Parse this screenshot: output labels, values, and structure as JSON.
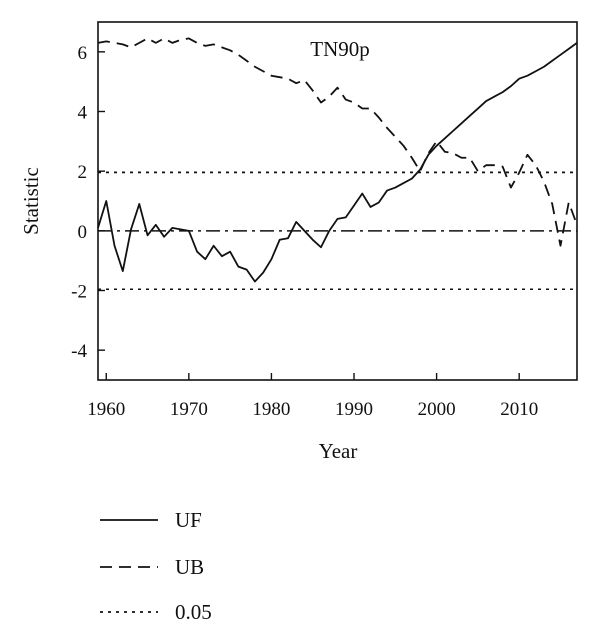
{
  "chart_data": {
    "type": "line",
    "title": "TN90p",
    "xlabel": "Year",
    "ylabel": "Statistic",
    "xlim": [
      1959,
      2017
    ],
    "ylim": [
      -5,
      7
    ],
    "x_ticks": [
      1960,
      1970,
      1980,
      1990,
      2000,
      2010
    ],
    "y_ticks": [
      -4,
      -2,
      0,
      2,
      4,
      6
    ],
    "grid": false,
    "legend_position": "below",
    "series": [
      {
        "name": "UF",
        "style": "solid",
        "color": "#111111",
        "x": [
          1959,
          1960,
          1961,
          1962,
          1963,
          1964,
          1965,
          1966,
          1967,
          1968,
          1969,
          1970,
          1971,
          1972,
          1973,
          1974,
          1975,
          1976,
          1977,
          1978,
          1979,
          1980,
          1981,
          1982,
          1983,
          1984,
          1985,
          1986,
          1987,
          1988,
          1989,
          1990,
          1991,
          1992,
          1993,
          1994,
          1995,
          1996,
          1997,
          1998,
          1999,
          2000,
          2001,
          2002,
          2003,
          2004,
          2005,
          2006,
          2007,
          2008,
          2009,
          2010,
          2011,
          2012,
          2013,
          2014,
          2015,
          2016,
          2017
        ],
        "y": [
          0.1,
          1.0,
          -0.5,
          -1.35,
          0.05,
          0.9,
          -0.15,
          0.2,
          -0.2,
          0.1,
          0.05,
          0.0,
          -0.7,
          -0.95,
          -0.5,
          -0.85,
          -0.7,
          -1.2,
          -1.3,
          -1.7,
          -1.4,
          -0.95,
          -0.3,
          -0.25,
          0.3,
          0.0,
          -0.3,
          -0.55,
          0.0,
          0.4,
          0.45,
          0.85,
          1.25,
          0.8,
          0.95,
          1.35,
          1.45,
          1.6,
          1.75,
          2.05,
          2.55,
          2.85,
          3.1,
          3.35,
          3.6,
          3.85,
          4.1,
          4.35,
          4.5,
          4.65,
          4.85,
          5.1,
          5.2,
          5.35,
          5.5,
          5.7,
          5.9,
          6.1,
          6.3
        ]
      },
      {
        "name": "UB",
        "style": "dashed",
        "color": "#111111",
        "x": [
          1959,
          1960,
          1961,
          1962,
          1963,
          1964,
          1965,
          1966,
          1967,
          1968,
          1969,
          1970,
          1971,
          1972,
          1973,
          1974,
          1975,
          1976,
          1977,
          1978,
          1979,
          1980,
          1981,
          1982,
          1983,
          1984,
          1985,
          1986,
          1987,
          1988,
          1989,
          1990,
          1991,
          1992,
          1993,
          1994,
          1995,
          1996,
          1997,
          1998,
          1999,
          2000,
          2001,
          2002,
          2003,
          2004,
          2005,
          2006,
          2007,
          2008,
          2009,
          2010,
          2011,
          2012,
          2013,
          2014,
          2015,
          2016,
          2017
        ],
        "y": [
          6.3,
          6.35,
          6.3,
          6.25,
          6.15,
          6.3,
          6.45,
          6.3,
          6.45,
          6.3,
          6.4,
          6.45,
          6.3,
          6.2,
          6.25,
          6.15,
          6.05,
          5.9,
          5.7,
          5.5,
          5.35,
          5.2,
          5.15,
          5.1,
          4.95,
          5.05,
          4.7,
          4.3,
          4.5,
          4.8,
          4.4,
          4.3,
          4.1,
          4.1,
          3.8,
          3.45,
          3.15,
          2.85,
          2.45,
          2.0,
          2.6,
          3.0,
          2.65,
          2.6,
          2.45,
          2.45,
          2.0,
          2.2,
          2.2,
          2.15,
          1.45,
          1.95,
          2.55,
          2.2,
          1.65,
          0.9,
          -0.5,
          0.95,
          0.2
        ]
      },
      {
        "name": "0.05",
        "style": "dotted",
        "color": "#111111",
        "x": [
          1959,
          2017
        ],
        "y": [
          1.96,
          1.96
        ]
      }
    ],
    "reference_lines": [
      {
        "style": "dotted",
        "y": -1.96
      },
      {
        "style": "dashdot",
        "y": 0
      }
    ]
  }
}
